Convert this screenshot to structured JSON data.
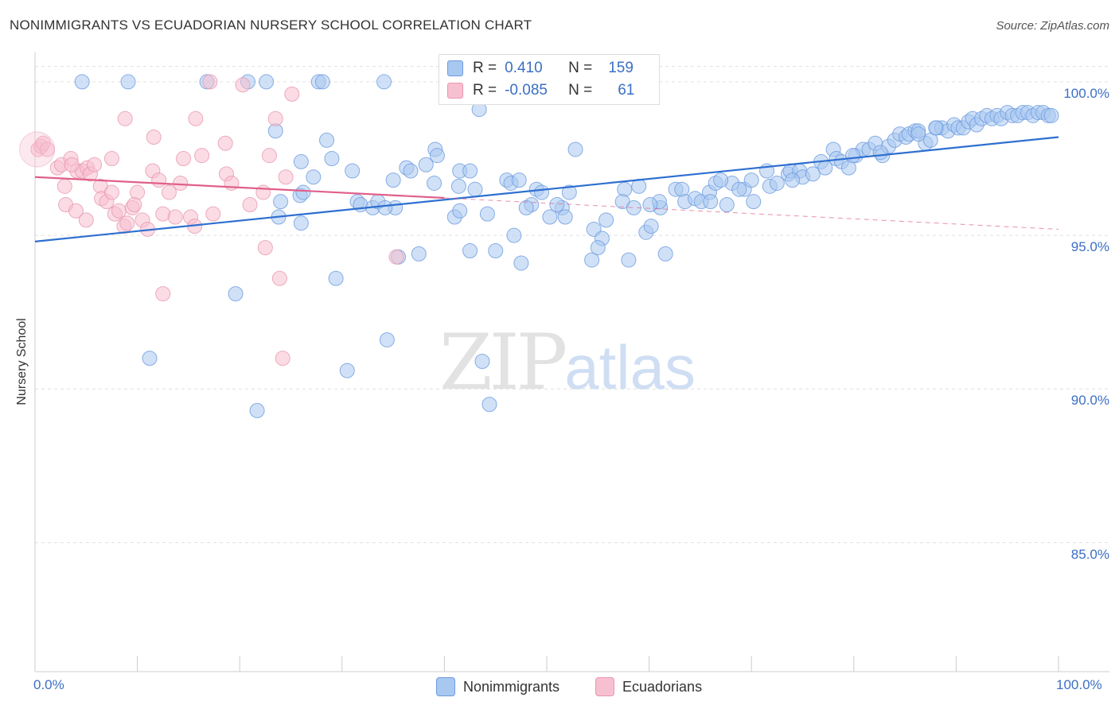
{
  "title": "NONIMMIGRANTS VS ECUADORIAN NURSERY SCHOOL CORRELATION CHART",
  "source": "Source: ZipAtlas.com",
  "watermark": {
    "zip": "ZIP",
    "atlas": "atlas"
  },
  "legend": {
    "rows": [
      {
        "r_label": "R =",
        "r_value": "0.410",
        "n_label": "N =",
        "n_value": "159"
      },
      {
        "r_label": "R =",
        "r_value": "-0.085",
        "n_label": "N =",
        "n_value": "61"
      }
    ]
  },
  "bottom_legend": {
    "series1": "Nonimmigrants",
    "series2": "Ecuadorians"
  },
  "colors": {
    "blue_fill": "#a9c8f0",
    "blue_stroke": "#6d9be0",
    "blue_line": "#2e6fd0",
    "pink_fill": "#f7c0d0",
    "pink_stroke": "#e897b0",
    "pink_line": "#e0608a",
    "tick_text": "#3b6fc4",
    "grid": "#e0e0e0"
  },
  "chart_data": {
    "type": "scatter",
    "xlabel": "",
    "ylabel": "Nursery School",
    "xlim": [
      0,
      100
    ],
    "ylim": [
      80.8,
      100.8
    ],
    "x_tick_labels": [
      "0.0%",
      "100.0%"
    ],
    "y_ticks": [
      {
        "value": 100,
        "label": "100.0%"
      },
      {
        "value": 95,
        "label": "95.0%"
      },
      {
        "value": 90,
        "label": "90.0%"
      },
      {
        "value": 85,
        "label": "85.0%"
      }
    ],
    "series": [
      {
        "name": "Nonimmigrants",
        "trend": {
          "x": [
            0,
            100
          ],
          "y": [
            94.8,
            98.2
          ],
          "dashed_from": null
        },
        "points": [
          [
            4.6,
            100
          ],
          [
            9.1,
            100
          ],
          [
            16.8,
            100
          ],
          [
            20.8,
            100
          ],
          [
            22.6,
            100
          ],
          [
            27.7,
            100
          ],
          [
            28.1,
            100
          ],
          [
            34.1,
            100
          ],
          [
            43.4,
            99.1
          ],
          [
            23.5,
            98.4
          ],
          [
            28.5,
            98.1
          ],
          [
            29.0,
            97.5
          ],
          [
            31.0,
            97.1
          ],
          [
            26.0,
            97.4
          ],
          [
            36.3,
            97.2
          ],
          [
            36.7,
            97.1
          ],
          [
            38.2,
            97.3
          ],
          [
            39.1,
            97.8
          ],
          [
            39.3,
            97.6
          ],
          [
            41.5,
            97.1
          ],
          [
            35.0,
            96.8
          ],
          [
            31.5,
            96.1
          ],
          [
            31.8,
            96.0
          ],
          [
            27.2,
            96.9
          ],
          [
            25.9,
            96.3
          ],
          [
            26.2,
            96.4
          ],
          [
            24.0,
            96.1
          ],
          [
            23.8,
            95.6
          ],
          [
            26.0,
            95.4
          ],
          [
            33.0,
            95.9
          ],
          [
            35.2,
            95.9
          ],
          [
            41.4,
            96.6
          ],
          [
            41.0,
            95.6
          ],
          [
            41.5,
            95.8
          ],
          [
            44.2,
            95.7
          ],
          [
            46.1,
            96.8
          ],
          [
            46.5,
            96.7
          ],
          [
            47.3,
            96.8
          ],
          [
            49.0,
            96.5
          ],
          [
            49.5,
            96.4
          ],
          [
            48.5,
            96.0
          ],
          [
            48.0,
            95.9
          ],
          [
            50.3,
            95.6
          ],
          [
            51.5,
            95.9
          ],
          [
            51.0,
            96.0
          ],
          [
            52.2,
            96.4
          ],
          [
            54.6,
            95.2
          ],
          [
            55.8,
            95.5
          ],
          [
            55.4,
            94.9
          ],
          [
            55.0,
            94.6
          ],
          [
            54.4,
            94.2
          ],
          [
            46.8,
            95.0
          ],
          [
            47.5,
            94.1
          ],
          [
            45.0,
            94.5
          ],
          [
            42.5,
            94.5
          ],
          [
            37.5,
            94.4
          ],
          [
            35.5,
            94.3
          ],
          [
            57.6,
            96.5
          ],
          [
            57.4,
            96.1
          ],
          [
            59.0,
            96.6
          ],
          [
            58.5,
            95.9
          ],
          [
            59.7,
            95.1
          ],
          [
            60.2,
            95.3
          ],
          [
            61.1,
            95.9
          ],
          [
            61.0,
            96.1
          ],
          [
            60.1,
            96.0
          ],
          [
            62.6,
            96.5
          ],
          [
            63.2,
            96.5
          ],
          [
            63.5,
            96.1
          ],
          [
            64.5,
            96.2
          ],
          [
            65.1,
            96.1
          ],
          [
            65.9,
            96.4
          ],
          [
            66.5,
            96.7
          ],
          [
            67.6,
            96.0
          ],
          [
            68.1,
            96.7
          ],
          [
            69.3,
            96.5
          ],
          [
            70.0,
            96.8
          ],
          [
            70.2,
            96.1
          ],
          [
            71.5,
            97.1
          ],
          [
            71.8,
            96.6
          ],
          [
            72.5,
            96.7
          ],
          [
            73.6,
            97.0
          ],
          [
            73.8,
            97.1
          ],
          [
            74.7,
            97.1
          ],
          [
            75.0,
            96.9
          ],
          [
            76.8,
            97.4
          ],
          [
            77.2,
            97.2
          ],
          [
            78.0,
            97.8
          ],
          [
            78.3,
            97.5
          ],
          [
            78.8,
            97.4
          ],
          [
            79.5,
            97.2
          ],
          [
            80.2,
            97.6
          ],
          [
            80.9,
            97.8
          ],
          [
            81.5,
            97.8
          ],
          [
            82.1,
            98.0
          ],
          [
            82.8,
            97.6
          ],
          [
            83.4,
            97.9
          ],
          [
            84.0,
            98.1
          ],
          [
            84.5,
            98.3
          ],
          [
            85.1,
            98.2
          ],
          [
            85.4,
            98.3
          ],
          [
            86.0,
            98.4
          ],
          [
            86.3,
            98.4
          ],
          [
            87.0,
            98.0
          ],
          [
            87.5,
            98.1
          ],
          [
            88.1,
            98.5
          ],
          [
            88.6,
            98.5
          ],
          [
            89.2,
            98.4
          ],
          [
            89.8,
            98.6
          ],
          [
            90.2,
            98.5
          ],
          [
            90.7,
            98.5
          ],
          [
            91.2,
            98.7
          ],
          [
            91.6,
            98.8
          ],
          [
            92.0,
            98.6
          ],
          [
            92.5,
            98.8
          ],
          [
            93.0,
            98.9
          ],
          [
            93.5,
            98.8
          ],
          [
            94.0,
            98.9
          ],
          [
            94.4,
            98.8
          ],
          [
            95.0,
            99.0
          ],
          [
            95.5,
            98.9
          ],
          [
            96.0,
            98.9
          ],
          [
            96.5,
            99.0
          ],
          [
            97.0,
            99.0
          ],
          [
            97.5,
            98.9
          ],
          [
            98.0,
            99.0
          ],
          [
            98.5,
            99.0
          ],
          [
            99.0,
            98.9
          ],
          [
            99.3,
            98.9
          ],
          [
            86.3,
            98.3
          ],
          [
            88.0,
            98.5
          ],
          [
            82.6,
            97.7
          ],
          [
            79.9,
            97.6
          ],
          [
            52.8,
            97.8
          ],
          [
            51.8,
            95.6
          ],
          [
            42.5,
            97.1
          ],
          [
            43.0,
            96.5
          ],
          [
            39.0,
            96.7
          ],
          [
            33.5,
            96.1
          ],
          [
            34.2,
            95.9
          ],
          [
            29.4,
            93.6
          ],
          [
            19.6,
            93.1
          ],
          [
            11.2,
            91.0
          ],
          [
            34.4,
            91.6
          ],
          [
            30.5,
            90.6
          ],
          [
            43.7,
            90.9
          ],
          [
            21.7,
            89.3
          ],
          [
            44.4,
            89.5
          ],
          [
            66.0,
            96.1
          ],
          [
            61.6,
            94.4
          ],
          [
            58.0,
            94.2
          ],
          [
            67.0,
            96.8
          ],
          [
            68.8,
            96.5
          ],
          [
            74.0,
            96.8
          ],
          [
            76.0,
            97.0
          ]
        ]
      },
      {
        "name": "Ecuadorians",
        "trend": {
          "x": [
            0,
            100
          ],
          "y": [
            96.9,
            95.2
          ],
          "dashed_from": 40
        },
        "points": [
          [
            0.3,
            97.8
          ],
          [
            0.6,
            97.9
          ],
          [
            0.8,
            98.0
          ],
          [
            1.2,
            97.8
          ],
          [
            2.2,
            97.2
          ],
          [
            2.6,
            97.3
          ],
          [
            3.5,
            97.5
          ],
          [
            4.1,
            97.1
          ],
          [
            4.6,
            97.1
          ],
          [
            5.1,
            97.2
          ],
          [
            5.4,
            97.0
          ],
          [
            5.8,
            97.3
          ],
          [
            6.4,
            96.6
          ],
          [
            6.5,
            96.2
          ],
          [
            7.0,
            96.1
          ],
          [
            7.5,
            96.4
          ],
          [
            7.8,
            95.7
          ],
          [
            8.2,
            95.8
          ],
          [
            8.7,
            95.3
          ],
          [
            9.0,
            95.4
          ],
          [
            9.5,
            95.9
          ],
          [
            10.0,
            96.4
          ],
          [
            10.5,
            95.5
          ],
          [
            11.0,
            95.2
          ],
          [
            11.5,
            97.1
          ],
          [
            12.1,
            96.8
          ],
          [
            12.5,
            95.7
          ],
          [
            13.1,
            96.4
          ],
          [
            13.7,
            95.6
          ],
          [
            14.2,
            96.7
          ],
          [
            14.5,
            97.5
          ],
          [
            15.2,
            95.6
          ],
          [
            15.6,
            95.3
          ],
          [
            15.7,
            98.8
          ],
          [
            17.4,
            95.7
          ],
          [
            18.6,
            98.0
          ],
          [
            18.7,
            97.0
          ],
          [
            19.2,
            96.7
          ],
          [
            21.0,
            96.0
          ],
          [
            22.3,
            96.4
          ],
          [
            22.9,
            97.6
          ],
          [
            24.5,
            96.9
          ],
          [
            25.1,
            99.6
          ],
          [
            20.3,
            99.9
          ],
          [
            17.1,
            100
          ],
          [
            23.5,
            98.8
          ],
          [
            8.8,
            98.8
          ],
          [
            11.6,
            98.2
          ],
          [
            3.6,
            97.3
          ],
          [
            2.9,
            96.6
          ],
          [
            3.0,
            96.0
          ],
          [
            4.0,
            95.8
          ],
          [
            12.5,
            93.1
          ],
          [
            22.5,
            94.6
          ],
          [
            23.9,
            93.6
          ],
          [
            24.2,
            91.0
          ],
          [
            35.3,
            94.3
          ],
          [
            7.5,
            97.5
          ],
          [
            9.7,
            96.0
          ],
          [
            16.3,
            97.6
          ],
          [
            5.0,
            95.5
          ]
        ]
      }
    ]
  }
}
